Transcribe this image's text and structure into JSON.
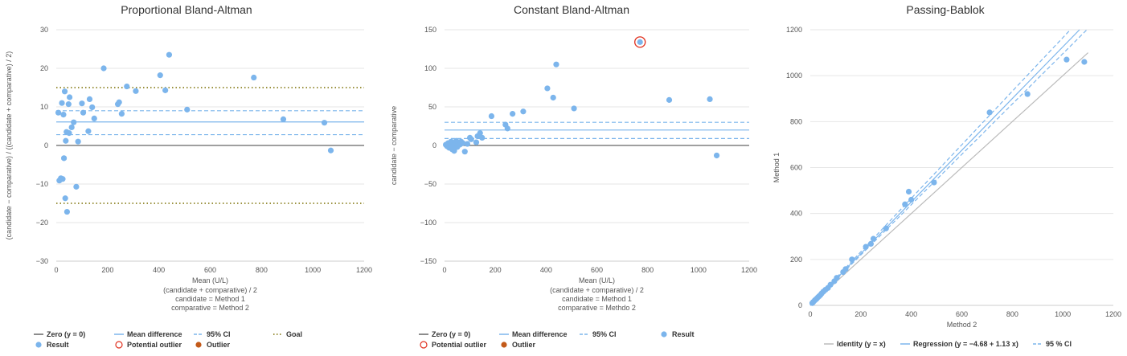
{
  "colors": {
    "result": "#7cb5ec",
    "outline_outlier": "#e0301e",
    "outlier": "#c35a1a",
    "zero": "#666666",
    "mean": "#7cb5ec",
    "ci": "#7cb5ec",
    "goal": "#7a6f00",
    "identity": "#bbbbbb"
  },
  "chart_data": [
    {
      "type": "scatter",
      "title": "Proportional Bland-Altman",
      "xlabel": "Mean (U/L)",
      "xlabel_lines": [
        "(candidate + comparative) / 2",
        "candidate = Method 1",
        "comparative = Method 2"
      ],
      "ylabel": "(candidate − comparative) / ((candidate + comparative) / 2)",
      "xlim": [
        0,
        1200
      ],
      "ylim": [
        -30,
        30
      ],
      "xticks": [
        "0",
        "200",
        "400",
        "600",
        "800",
        "1000",
        "1200"
      ],
      "yticks": [
        "30",
        "20",
        "10",
        "0",
        "−10",
        "−20",
        "−30"
      ],
      "lines": {
        "zero": 0,
        "mean": 6.1,
        "ci_upper": 9.0,
        "ci_lower": 2.8,
        "goal_upper": 15,
        "goal_lower": -15
      },
      "points": [
        [
          8,
          8.5
        ],
        [
          12,
          -9.1
        ],
        [
          18,
          -8.5
        ],
        [
          22,
          11
        ],
        [
          25,
          -8.7
        ],
        [
          28,
          8
        ],
        [
          30,
          -3.3
        ],
        [
          33,
          14
        ],
        [
          35,
          -13.7
        ],
        [
          37,
          1.2
        ],
        [
          40,
          3.5
        ],
        [
          42,
          -17.2
        ],
        [
          48,
          10.7
        ],
        [
          50,
          3.2
        ],
        [
          52,
          12.5
        ],
        [
          60,
          4.7
        ],
        [
          68,
          6
        ],
        [
          78,
          -10.7
        ],
        [
          85,
          1
        ],
        [
          100,
          10.9
        ],
        [
          105,
          8.5
        ],
        [
          125,
          3.7
        ],
        [
          130,
          12
        ],
        [
          140,
          9.9
        ],
        [
          148,
          7
        ],
        [
          185,
          20
        ],
        [
          240,
          10.7
        ],
        [
          245,
          11.2
        ],
        [
          255,
          8.2
        ],
        [
          275,
          15.3
        ],
        [
          310,
          14.1
        ],
        [
          405,
          18.2
        ],
        [
          425,
          14.3
        ],
        [
          440,
          23.5
        ],
        [
          510,
          9.3
        ],
        [
          770,
          17.6
        ],
        [
          885,
          6.8
        ],
        [
          1045,
          5.9
        ],
        [
          1070,
          -1.3
        ]
      ],
      "outlier_ring": [],
      "legend": [
        {
          "label": "Zero (y = 0)",
          "kind": "line-solid",
          "color": "zero"
        },
        {
          "label": "Mean difference",
          "kind": "line-solid",
          "color": "mean"
        },
        {
          "label": "95% CI",
          "kind": "line-dash",
          "color": "ci"
        },
        {
          "label": "Goal",
          "kind": "line-dot",
          "color": "goal"
        },
        {
          "label": "Result",
          "kind": "dot",
          "color": "result"
        },
        {
          "label": "Potential outlier",
          "kind": "ring",
          "color": "outline_outlier"
        },
        {
          "label": "Outlier",
          "kind": "dot",
          "color": "outlier"
        }
      ]
    },
    {
      "type": "scatter",
      "title": "Constant Bland-Altman",
      "xlabel": "Mean (U/L)",
      "xlabel_lines": [
        "(candidate + comparative) / 2",
        "candidate = Method 1",
        "comparative = Methdo 2"
      ],
      "ylabel": "candidate − comparative",
      "xlim": [
        0,
        1200
      ],
      "ylim": [
        -150,
        150
      ],
      "xticks": [
        "0",
        "200",
        "400",
        "600",
        "800",
        "1000",
        "1200"
      ],
      "yticks": [
        "150",
        "100",
        "50",
        "0",
        "−50",
        "−100",
        "−150"
      ],
      "lines": {
        "zero": 0,
        "mean": 20,
        "ci_upper": 30,
        "ci_lower": 9
      },
      "points": [
        [
          5,
          1
        ],
        [
          10,
          -1
        ],
        [
          14,
          3
        ],
        [
          18,
          -3
        ],
        [
          22,
          2
        ],
        [
          26,
          5
        ],
        [
          30,
          -5
        ],
        [
          34,
          0
        ],
        [
          38,
          -7
        ],
        [
          42,
          4
        ],
        [
          46,
          6
        ],
        [
          50,
          -2
        ],
        [
          55,
          3
        ],
        [
          60,
          1
        ],
        [
          65,
          5
        ],
        [
          72,
          3
        ],
        [
          80,
          -8
        ],
        [
          90,
          2
        ],
        [
          100,
          10
        ],
        [
          105,
          8
        ],
        [
          125,
          4
        ],
        [
          130,
          12
        ],
        [
          140,
          16
        ],
        [
          148,
          10
        ],
        [
          185,
          38
        ],
        [
          240,
          27
        ],
        [
          248,
          22
        ],
        [
          268,
          41
        ],
        [
          310,
          44
        ],
        [
          405,
          74
        ],
        [
          428,
          62
        ],
        [
          440,
          105
        ],
        [
          510,
          48
        ],
        [
          770,
          134
        ],
        [
          885,
          59
        ],
        [
          1045,
          60
        ],
        [
          1072,
          -13
        ]
      ],
      "outlier_ring": [
        [
          770,
          134
        ]
      ],
      "legend": [
        {
          "label": "Zero (y = 0)",
          "kind": "line-solid",
          "color": "zero"
        },
        {
          "label": "Mean difference",
          "kind": "line-solid",
          "color": "mean"
        },
        {
          "label": "95% CI",
          "kind": "line-dash",
          "color": "ci"
        },
        {
          "label": "Result",
          "kind": "dot",
          "color": "result"
        },
        {
          "label": "Potential outlier",
          "kind": "ring",
          "color": "outline_outlier"
        },
        {
          "label": "Outlier",
          "kind": "dot",
          "color": "outlier"
        }
      ]
    },
    {
      "type": "scatter",
      "title": "Passing-Bablok",
      "xlabel": "Method 2",
      "ylabel": "Method 1",
      "xlim": [
        0,
        1200
      ],
      "ylim": [
        0,
        1200
      ],
      "xticks": [
        "0",
        "200",
        "400",
        "600",
        "800",
        "1000",
        "1200"
      ],
      "yticks": [
        "1200",
        "1000",
        "800",
        "600",
        "400",
        "200",
        "0"
      ],
      "regression": {
        "intercept": -4.68,
        "slope": 1.13,
        "ci_upper_slope": 1.17,
        "ci_lower_slope": 1.1
      },
      "identity_xrange": [
        0,
        1100
      ],
      "regression_xrange": [
        0,
        1115
      ],
      "points": [
        [
          8,
          10
        ],
        [
          12,
          15
        ],
        [
          18,
          22
        ],
        [
          22,
          26
        ],
        [
          26,
          30
        ],
        [
          30,
          35
        ],
        [
          35,
          40
        ],
        [
          40,
          45
        ],
        [
          45,
          52
        ],
        [
          52,
          60
        ],
        [
          60,
          68
        ],
        [
          70,
          76
        ],
        [
          80,
          90
        ],
        [
          95,
          105
        ],
        [
          105,
          120
        ],
        [
          130,
          145
        ],
        [
          140,
          158
        ],
        [
          165,
          200
        ],
        [
          220,
          255
        ],
        [
          240,
          268
        ],
        [
          250,
          290
        ],
        [
          300,
          335
        ],
        [
          375,
          440
        ],
        [
          390,
          495
        ],
        [
          400,
          460
        ],
        [
          490,
          535
        ],
        [
          710,
          840
        ],
        [
          860,
          920
        ],
        [
          1015,
          1070
        ],
        [
          1085,
          1060
        ]
      ],
      "legend": [
        {
          "label": "Identity (y = x)",
          "kind": "line-solid",
          "color": "identity"
        },
        {
          "label": "Regression (y = −4.68 + 1.13 x)",
          "kind": "line-solid",
          "color": "mean"
        },
        {
          "label": "95 % CI",
          "kind": "line-dash",
          "color": "ci"
        }
      ]
    }
  ]
}
